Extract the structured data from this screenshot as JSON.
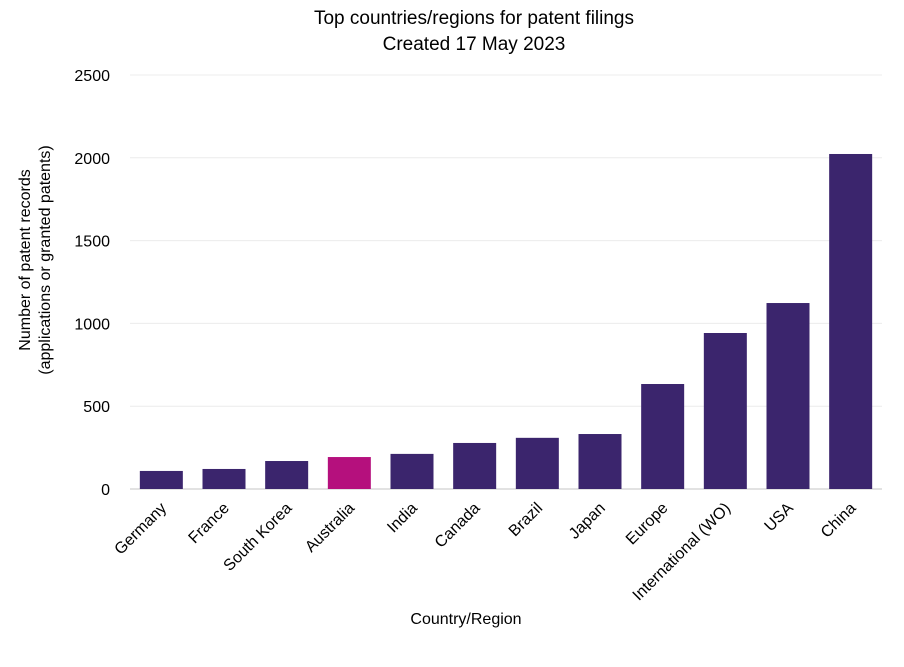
{
  "chart_data": {
    "type": "bar",
    "title": "Top countries/regions for patent filings",
    "subtitle": "Created 17 May 2023",
    "xlabel": "Country/Region",
    "ylabel": [
      "Number of patent records",
      "(applications or granted patents)"
    ],
    "categories": [
      "Germany",
      "France",
      "South Korea",
      "Australia",
      "India",
      "Canada",
      "Brazil",
      "Japan",
      "Europe",
      "International (WO)",
      "USA",
      "China"
    ],
    "values": [
      109,
      121,
      169,
      193,
      212,
      278,
      309,
      332,
      634,
      942,
      1123,
      2023
    ],
    "ylim": [
      0,
      2500
    ],
    "yticks": [
      0,
      500,
      1000,
      1500,
      2000,
      2500
    ],
    "grid": true,
    "colors": {
      "default": "#3b256d",
      "highlight": "#b5107d",
      "highlight_category": "Australia"
    }
  }
}
